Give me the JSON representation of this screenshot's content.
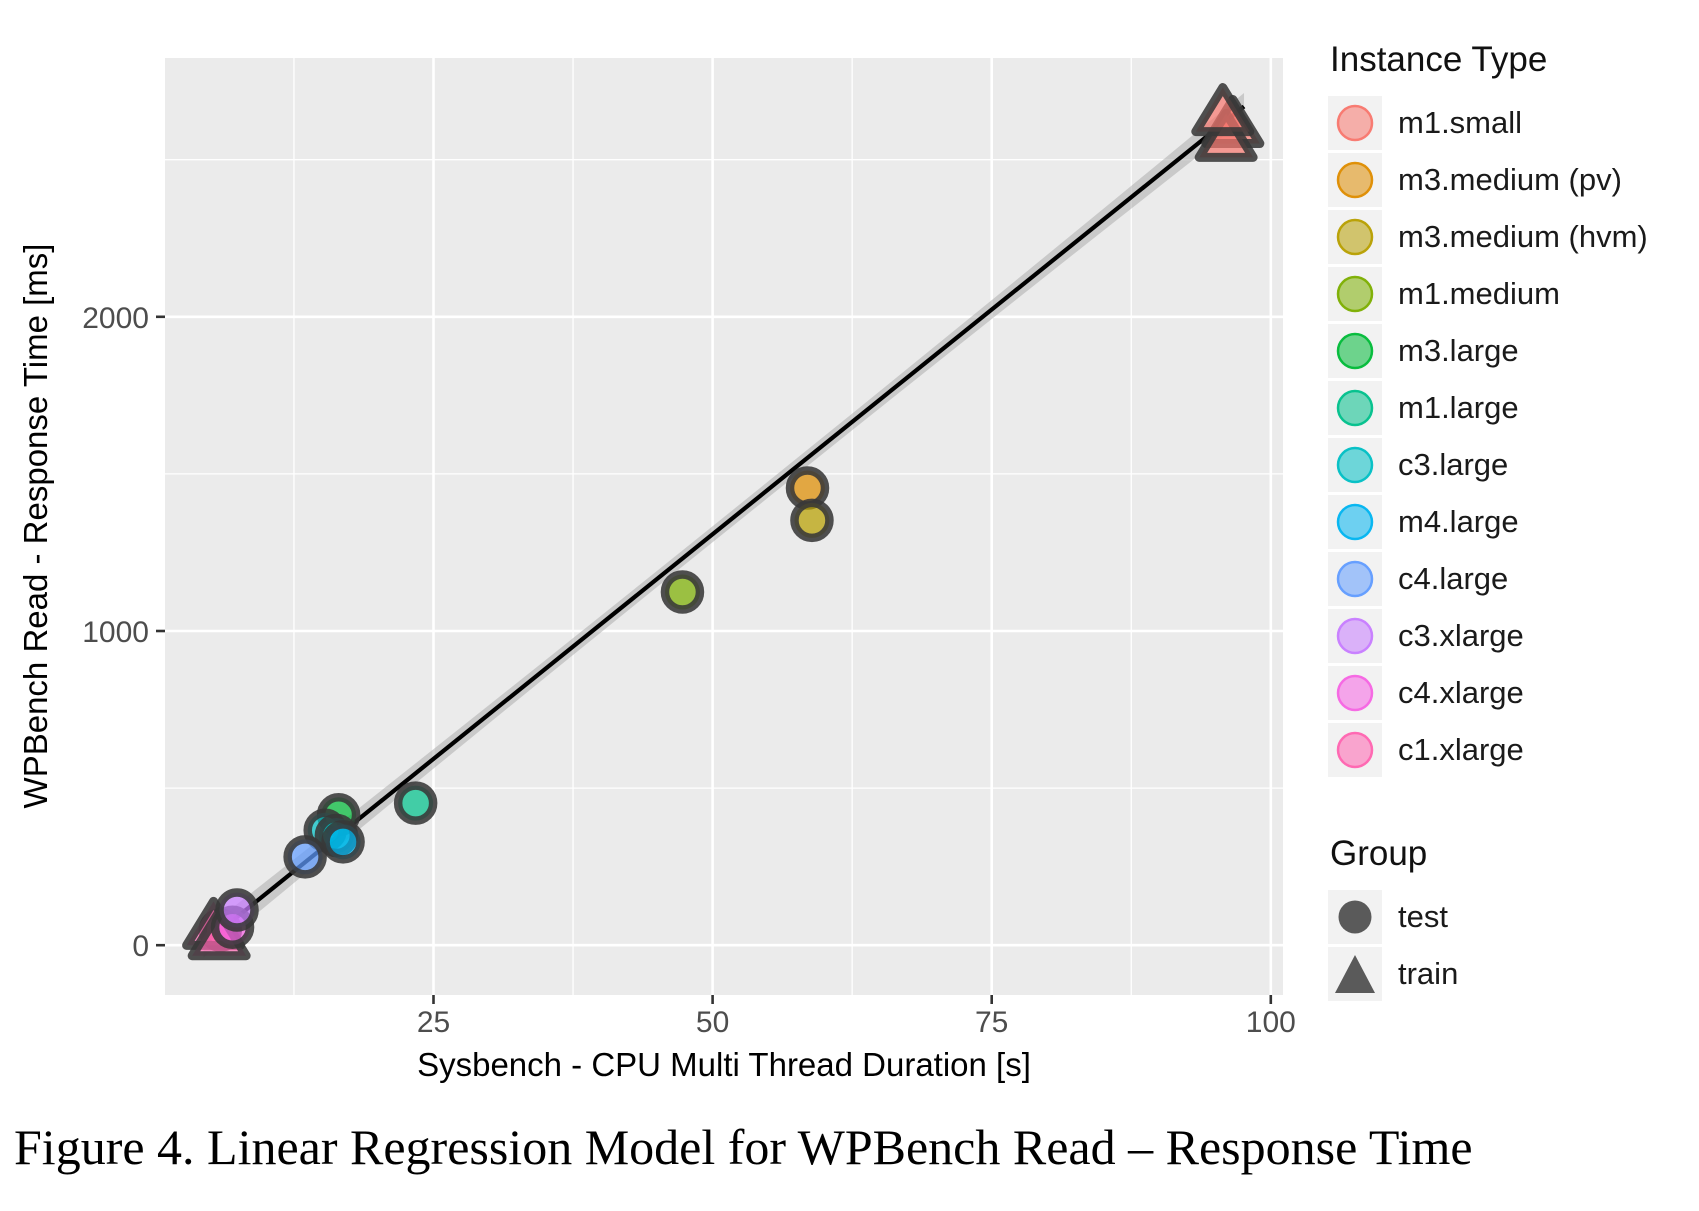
{
  "figure": {
    "caption": "Figure 4.  Linear Regression Model for WPBench Read – Response Time"
  },
  "chart_data": {
    "type": "scatter",
    "title": "",
    "xlabel": "Sysbench - CPU Multi Thread Duration [s]",
    "ylabel": "WPBench Read - Response Time [ms]",
    "xlim": [
      1,
      101
    ],
    "ylim": [
      -160,
      2825
    ],
    "xticks": [
      25,
      50,
      75,
      100
    ],
    "yticks": [
      0,
      1000,
      2000
    ],
    "xticks_minor": [
      12.5,
      37.5,
      62.5,
      87.5
    ],
    "yticks_minor": [
      500,
      1500,
      2500
    ],
    "grid": true,
    "panel_color": "#ebebeb",
    "gridline_color": "#ffffff",
    "tick_label_color": "#4d4d4d",
    "point_outline_color": "#383838",
    "regression": {
      "slope": 28.6,
      "intercept": -122,
      "x_start": 4.4,
      "x_end": 97.6,
      "line_color": "#000000",
      "band_color": "#a8a8a8"
    },
    "series": [
      {
        "name": "m1.small",
        "color": "#F8766D",
        "points": [
          {
            "x": 96.6,
            "y": 2612,
            "group": "train"
          },
          {
            "x": 96.0,
            "y": 2568,
            "group": "train"
          },
          {
            "x": 95.7,
            "y": 2650,
            "group": "train"
          }
        ]
      },
      {
        "name": "m3.medium (pv)",
        "color": "#DE8C00",
        "points": [
          {
            "x": 58.5,
            "y": 1455,
            "group": "test"
          }
        ]
      },
      {
        "name": "m3.medium (hvm)",
        "color": "#B79F00",
        "points": [
          {
            "x": 58.9,
            "y": 1352,
            "group": "test"
          }
        ]
      },
      {
        "name": "m1.medium",
        "color": "#7CAE00",
        "points": [
          {
            "x": 47.3,
            "y": 1124,
            "group": "test"
          }
        ]
      },
      {
        "name": "m3.large",
        "color": "#00BA38",
        "points": [
          {
            "x": 16.5,
            "y": 415,
            "group": "test"
          }
        ]
      },
      {
        "name": "m1.large",
        "color": "#00C08B",
        "points": [
          {
            "x": 23.4,
            "y": 452,
            "group": "test"
          }
        ]
      },
      {
        "name": "c3.large",
        "color": "#00BFC4",
        "points": [
          {
            "x": 15.3,
            "y": 366,
            "group": "test"
          },
          {
            "x": 16.3,
            "y": 349,
            "group": "test"
          }
        ]
      },
      {
        "name": "m4.large",
        "color": "#00B4F0",
        "points": [
          {
            "x": 16.9,
            "y": 329,
            "group": "test"
          }
        ]
      },
      {
        "name": "c4.large",
        "color": "#619CFF",
        "points": [
          {
            "x": 13.5,
            "y": 281,
            "group": "test"
          }
        ]
      },
      {
        "name": "c1.xlarge",
        "color": "#FF64B0",
        "points": [
          {
            "x": 5.9,
            "y": 48,
            "group": "test"
          },
          {
            "x": 5.3,
            "y": 60,
            "group": "train"
          },
          {
            "x": 5.8,
            "y": 27,
            "group": "train"
          }
        ]
      },
      {
        "name": "c4.xlarge",
        "color": "#F564E3",
        "points": [
          {
            "x": 7.0,
            "y": 57,
            "group": "test"
          }
        ]
      },
      {
        "name": "c3.xlarge",
        "color": "#C77CFF",
        "points": [
          {
            "x": 7.4,
            "y": 112,
            "group": "test"
          }
        ]
      }
    ],
    "legend": {
      "title": "Instance Type",
      "order": [
        0,
        1,
        2,
        3,
        4,
        5,
        6,
        7,
        8,
        11,
        10,
        9
      ],
      "group_title": "Group",
      "group_items": [
        {
          "label": "test",
          "shape": "circle"
        },
        {
          "label": "train",
          "shape": "triangle"
        }
      ],
      "group_key_color": "#5a5a5a"
    }
  }
}
